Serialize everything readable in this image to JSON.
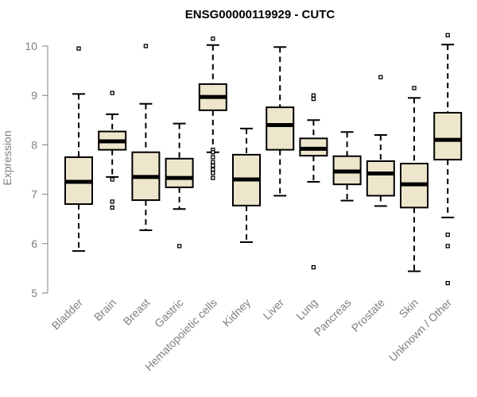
{
  "chart_data": {
    "type": "boxplot",
    "title": "ENSG00000119929 - CUTC",
    "xlabel": "",
    "ylabel": "Expression",
    "ylim": [
      5,
      10.2
    ],
    "yticks": [
      5,
      6,
      7,
      8,
      9,
      10
    ],
    "box_fill": "#ede6cc",
    "categories": [
      "Bladder",
      "Brain",
      "Breast",
      "Gastric",
      "Hematopoietic cells",
      "Kidney",
      "Liver",
      "Lung",
      "Pancreas",
      "Prostate",
      "Skin",
      "Unknown / Other"
    ],
    "boxes": [
      {
        "name": "Bladder",
        "whisker_low": 5.85,
        "q1": 6.8,
        "median": 7.25,
        "q3": 7.75,
        "whisker_high": 9.03,
        "outliers": [
          9.95
        ]
      },
      {
        "name": "Brain",
        "whisker_low": 7.35,
        "q1": 7.9,
        "median": 8.07,
        "q3": 8.27,
        "whisker_high": 8.62,
        "outliers": [
          9.05,
          7.3,
          6.85,
          6.73
        ]
      },
      {
        "name": "Breast",
        "whisker_low": 6.27,
        "q1": 6.88,
        "median": 7.35,
        "q3": 7.85,
        "whisker_high": 8.83,
        "outliers": [
          10.0
        ]
      },
      {
        "name": "Gastric",
        "whisker_low": 6.7,
        "q1": 7.14,
        "median": 7.33,
        "q3": 7.72,
        "whisker_high": 8.43,
        "outliers": [
          5.95
        ]
      },
      {
        "name": "Hematopoietic cells",
        "whisker_low": 7.85,
        "q1": 8.7,
        "median": 8.97,
        "q3": 9.23,
        "whisker_high": 10.02,
        "outliers": [
          10.15,
          7.9,
          7.85,
          7.75,
          7.65,
          7.58,
          7.5,
          7.43,
          7.33
        ]
      },
      {
        "name": "Kidney",
        "whisker_low": 6.03,
        "q1": 6.77,
        "median": 7.3,
        "q3": 7.8,
        "whisker_high": 8.33,
        "outliers": []
      },
      {
        "name": "Liver",
        "whisker_low": 6.97,
        "q1": 7.9,
        "median": 8.4,
        "q3": 8.76,
        "whisker_high": 9.98,
        "outliers": []
      },
      {
        "name": "Lung",
        "whisker_low": 7.25,
        "q1": 7.78,
        "median": 7.92,
        "q3": 8.13,
        "whisker_high": 8.5,
        "outliers": [
          9.0,
          8.93,
          5.52
        ]
      },
      {
        "name": "Pancreas",
        "whisker_low": 6.87,
        "q1": 7.2,
        "median": 7.46,
        "q3": 7.77,
        "whisker_high": 8.26,
        "outliers": []
      },
      {
        "name": "Prostate",
        "whisker_low": 6.76,
        "q1": 6.97,
        "median": 7.42,
        "q3": 7.67,
        "whisker_high": 8.2,
        "outliers": [
          9.37
        ]
      },
      {
        "name": "Skin",
        "whisker_low": 5.44,
        "q1": 6.73,
        "median": 7.2,
        "q3": 7.62,
        "whisker_high": 8.95,
        "outliers": [
          9.15
        ]
      },
      {
        "name": "Unknown / Other",
        "whisker_low": 6.53,
        "q1": 7.7,
        "median": 8.1,
        "q3": 8.65,
        "whisker_high": 10.03,
        "outliers": [
          10.22,
          6.18,
          5.95,
          5.2
        ]
      }
    ]
  }
}
